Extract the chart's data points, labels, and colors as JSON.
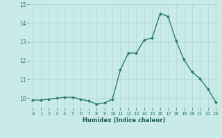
{
  "x": [
    0,
    1,
    2,
    3,
    4,
    5,
    6,
    7,
    8,
    9,
    10,
    11,
    12,
    13,
    14,
    15,
    16,
    17,
    18,
    19,
    20,
    21,
    22,
    23
  ],
  "y": [
    9.9,
    9.9,
    9.95,
    10.0,
    10.05,
    10.05,
    9.95,
    9.85,
    9.7,
    9.75,
    9.95,
    11.5,
    12.4,
    12.4,
    13.1,
    13.2,
    14.5,
    14.35,
    13.05,
    12.05,
    11.4,
    11.05,
    10.5,
    9.8
  ],
  "xlabel": "Humidex (Indice chaleur)",
  "ylim": [
    9.5,
    15.0
  ],
  "xlim": [
    -0.5,
    23.5
  ],
  "yticks": [
    10,
    11,
    12,
    13,
    14,
    15
  ],
  "xticks": [
    0,
    1,
    2,
    3,
    4,
    5,
    6,
    7,
    8,
    9,
    10,
    11,
    12,
    13,
    14,
    15,
    16,
    17,
    18,
    19,
    20,
    21,
    22,
    23
  ],
  "line_color": "#2d7d6e",
  "marker_color": "#2d7d6e",
  "bg_color": "#c8eae8",
  "grid_color": "#b0d8d5"
}
